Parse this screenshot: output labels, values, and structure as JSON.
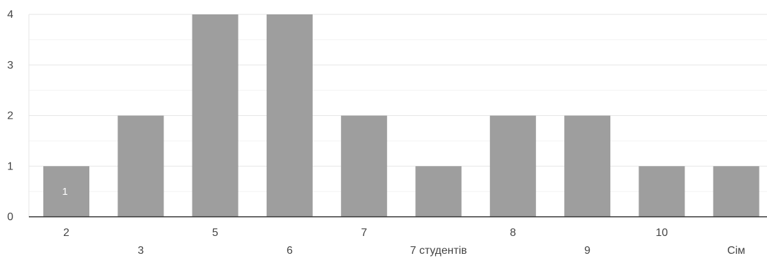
{
  "chart_data": {
    "type": "bar",
    "categories": [
      "2",
      "3",
      "5",
      "6",
      "7",
      "7 студентів",
      "8",
      "9",
      "10",
      "Сім"
    ],
    "values": [
      1,
      2,
      4,
      4,
      2,
      1,
      2,
      2,
      1,
      1
    ],
    "data_labels": [
      "1",
      "",
      "",
      "",
      "",
      "",
      "",
      "",
      "",
      ""
    ],
    "y_ticks": [
      "0",
      "1",
      "2",
      "3",
      "4"
    ],
    "ylim": [
      0,
      4
    ],
    "minor_grid": true,
    "title": "",
    "xlabel": "",
    "ylabel": "",
    "colors": {
      "bar": "#9e9e9e",
      "grid": "#e6e6e6",
      "minor_grid": "#f2f2f2",
      "axis": "#333333",
      "tick_text": "#444444",
      "data_label": "#ffffff"
    }
  }
}
